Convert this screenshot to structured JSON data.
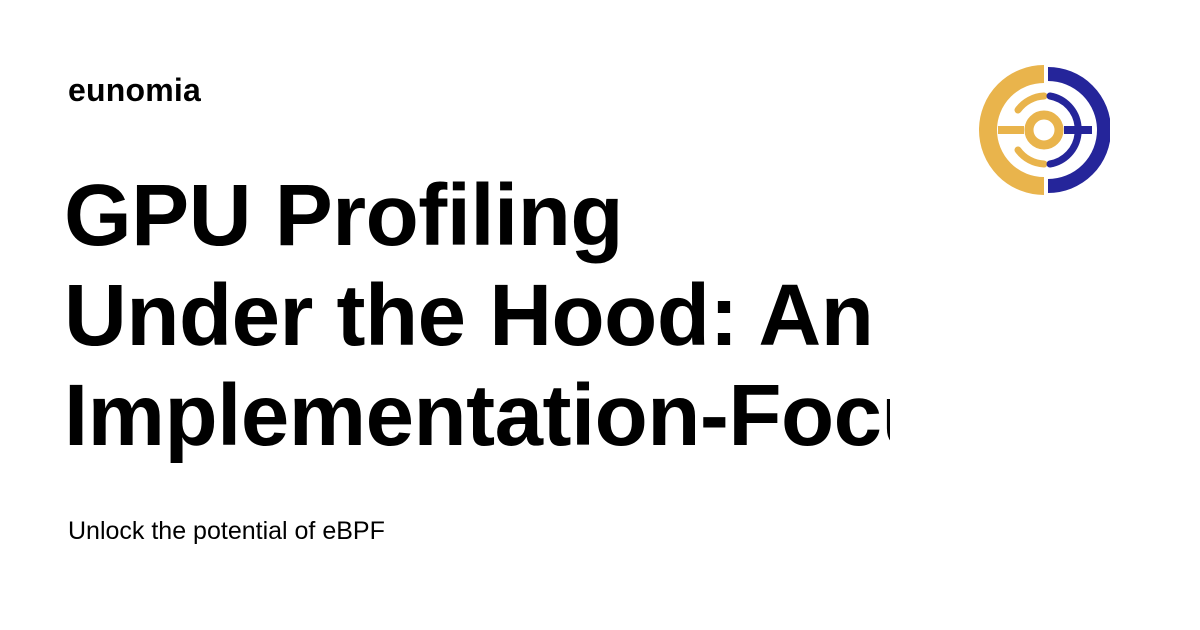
{
  "site": {
    "name": "eunomia"
  },
  "article": {
    "title_lines": [
      "GPU Profiling",
      "Under the Hood: An",
      "Implementation-Focused"
    ],
    "subtitle": "Unlock the potential of eBPF"
  },
  "logo": {
    "icon": "eunomia-logo-icon",
    "colors": {
      "gold": "#E9B44C",
      "navy": "#25259A"
    }
  }
}
